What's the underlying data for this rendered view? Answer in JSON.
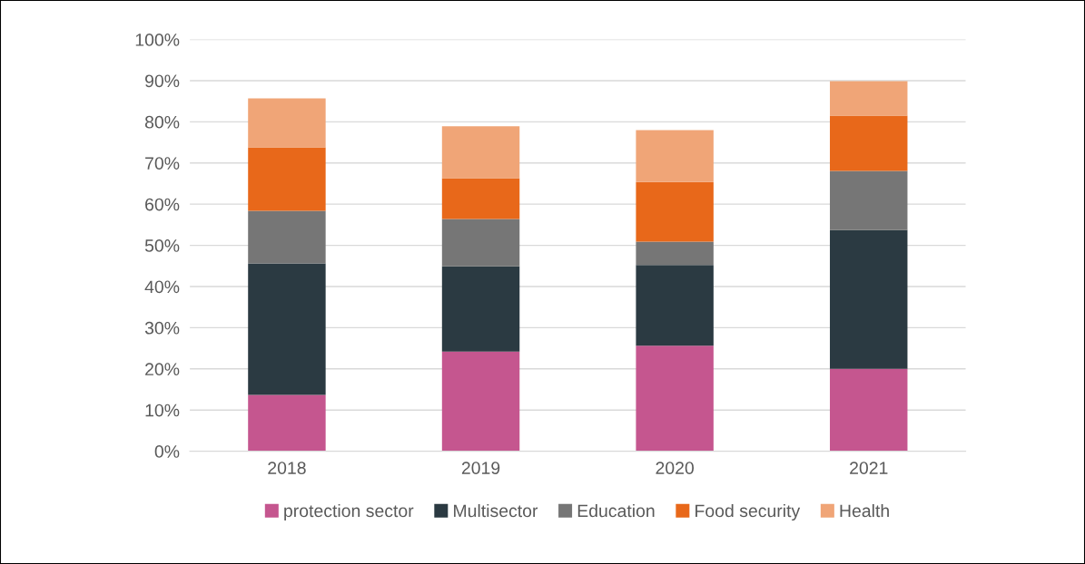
{
  "chart_data": {
    "type": "bar",
    "stacked": true,
    "categories": [
      "2018",
      "2019",
      "2020",
      "2021"
    ],
    "series": [
      {
        "name": "protection sector",
        "color": "#c5568f",
        "values": [
          13.7,
          24.2,
          25.6,
          20.0
        ]
      },
      {
        "name": "Multisector",
        "color": "#2b3a42",
        "values": [
          31.9,
          20.7,
          19.6,
          33.7
        ]
      },
      {
        "name": "Education",
        "color": "#767676",
        "values": [
          12.8,
          11.5,
          5.7,
          14.4
        ]
      },
      {
        "name": "Food security",
        "color": "#e8681a",
        "values": [
          15.4,
          9.9,
          14.5,
          13.4
        ]
      },
      {
        "name": "Health",
        "color": "#f0a577",
        "values": [
          11.9,
          12.6,
          12.6,
          8.4
        ]
      }
    ],
    "ylim": [
      0,
      100
    ],
    "yticks": [
      {
        "value": 0,
        "label": "0%"
      },
      {
        "value": 10,
        "label": "10%"
      },
      {
        "value": 20,
        "label": "20%"
      },
      {
        "value": 30,
        "label": "30%"
      },
      {
        "value": 40,
        "label": "40%"
      },
      {
        "value": 50,
        "label": "50%"
      },
      {
        "value": 60,
        "label": "60%"
      },
      {
        "value": 70,
        "label": "70%"
      },
      {
        "value": 80,
        "label": "80%"
      },
      {
        "value": 90,
        "label": "90%"
      },
      {
        "value": 100,
        "label": "100%"
      }
    ],
    "grid": "y",
    "legend": "bottom"
  }
}
